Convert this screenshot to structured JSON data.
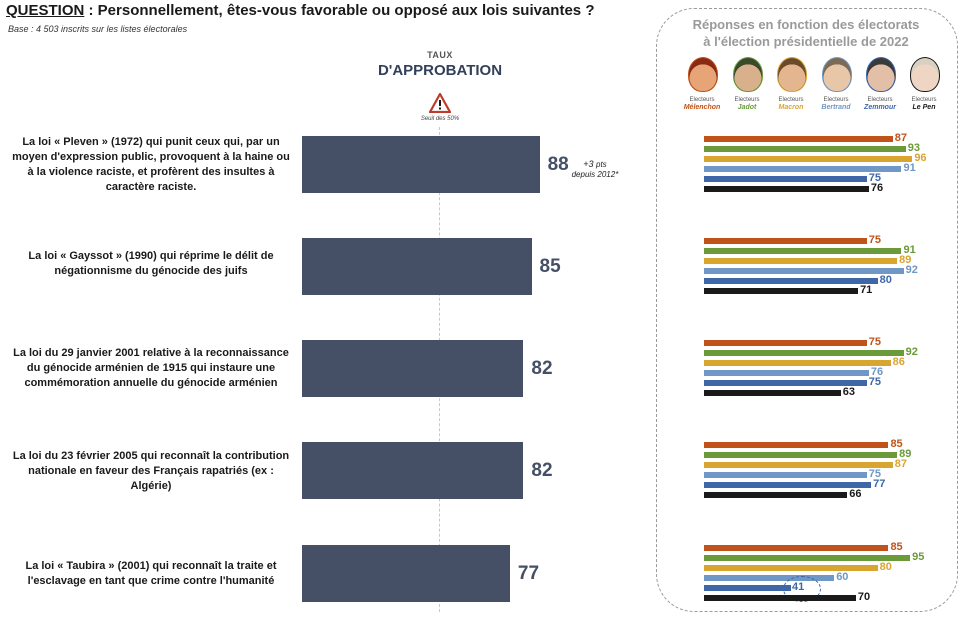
{
  "header": {
    "question_label": "QUESTION",
    "question_text": " :  Personnellement, êtes-vous favorable ou opposé aux lois suivantes ?",
    "base": "Base : 4 503 inscrits sur les listes électorales"
  },
  "axis": {
    "taux_label": "TAUX",
    "approbation_label": "D'APPROBATION",
    "threshold_label": "Seuil des 50%"
  },
  "panel": {
    "title_line1": "Réponses en fonction des électorats",
    "title_line2": "à l'élection présidentielle de 2022"
  },
  "electorates": [
    {
      "prefix": "Electeurs",
      "name": "Mélenchon",
      "color": "#c0531a"
    },
    {
      "prefix": "Electeurs",
      "name": "Jadot",
      "color": "#6a9a3a"
    },
    {
      "prefix": "Electeurs",
      "name": "Macron",
      "color": "#d9a531"
    },
    {
      "prefix": "Electeurs",
      "name": "Bertrand",
      "color": "#6f98c6"
    },
    {
      "prefix": "Electeurs",
      "name": "Zemmour",
      "color": "#3f67a8"
    },
    {
      "prefix": "Electeurs",
      "name": "Le Pen",
      "color": "#1a1a1a"
    }
  ],
  "colors": {
    "main_bar": "#454f65"
  },
  "chart_data": {
    "type": "bar",
    "orientation": "horizontal",
    "xlim": [
      0,
      100
    ],
    "threshold": 50,
    "categories": [
      "La loi « Pleven » (1972) qui punit ceux qui, par un moyen d'expression public, provoquent à la haine ou à la violence raciste, et profèrent des insultes à caractère raciste.",
      "La loi « Gayssot » (1990) qui réprime le délit de négationnisme du génocide des juifs",
      "La loi du 29 janvier 2001 relative à la reconnaissance du génocide arménien de 1915 qui instaure une commémoration annuelle du génocide arménien",
      "La loi du 23 février 2005 qui reconnaît la contribution nationale en faveur des Français rapatriés (ex : Algérie)",
      "La loi « Taubira » (2001) qui reconnaît la traite et l'esclavage en tant que crime contre l'humanité"
    ],
    "values": [
      88,
      85,
      82,
      82,
      77
    ],
    "annotations": [
      {
        "index": 0,
        "delta": "+3",
        "unit": "pts",
        "text": "depuis 2012*"
      }
    ],
    "series": [
      {
        "name": "Electeurs Mélenchon",
        "values": [
          87,
          75,
          75,
          85,
          85
        ]
      },
      {
        "name": "Electeurs Jadot",
        "values": [
          93,
          91,
          92,
          89,
          95
        ]
      },
      {
        "name": "Electeurs Macron",
        "values": [
          96,
          89,
          86,
          87,
          80
        ]
      },
      {
        "name": "Electeurs Bertrand",
        "values": [
          91,
          92,
          76,
          75,
          60
        ]
      },
      {
        "name": "Electeurs Zemmour",
        "values": [
          75,
          80,
          75,
          77,
          41
        ]
      },
      {
        "name": "Electeurs Le Pen",
        "values": [
          76,
          71,
          63,
          66,
          70
        ]
      }
    ],
    "highlight": {
      "series": "Electeurs Zemmour",
      "index": 4
    }
  }
}
